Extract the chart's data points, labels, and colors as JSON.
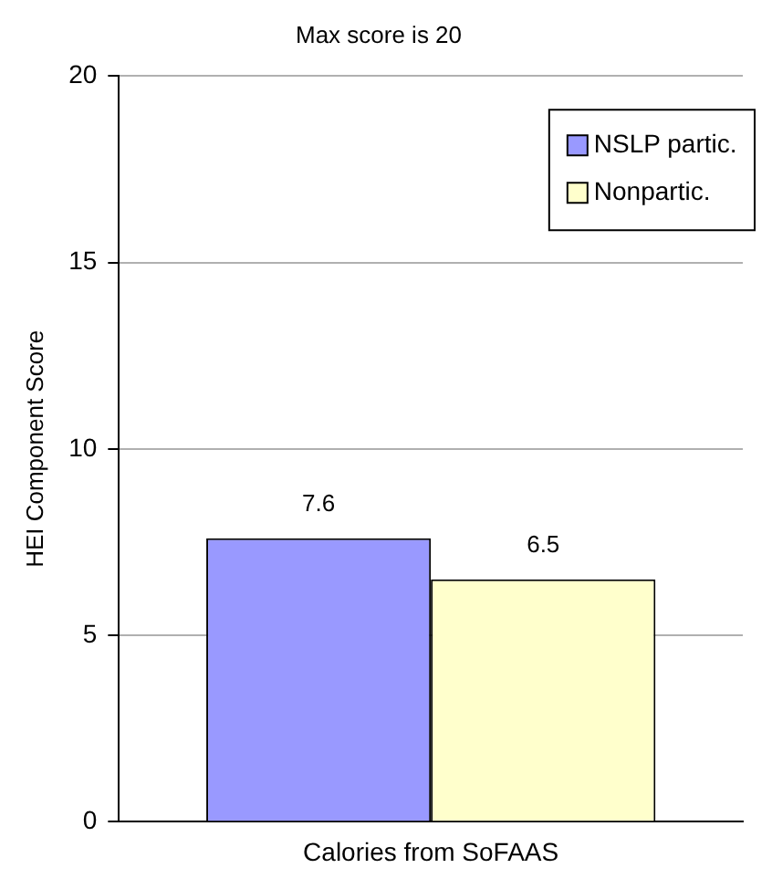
{
  "chart_data": {
    "type": "bar",
    "title": "Max score is 20",
    "ylabel": "HEI Component Score",
    "categories": [
      "Calories from SoFAAS"
    ],
    "series": [
      {
        "name": "NSLP partic.",
        "color": "#9999ff",
        "values": [
          7.6
        ]
      },
      {
        "name": "Nonpartic.",
        "color": "#ffffcc",
        "values": [
          6.5
        ]
      }
    ],
    "ylim": [
      0,
      20
    ],
    "yticks": [
      0,
      5,
      10,
      15,
      20
    ],
    "grid": "y",
    "legend": "top right",
    "data_labels": true
  }
}
